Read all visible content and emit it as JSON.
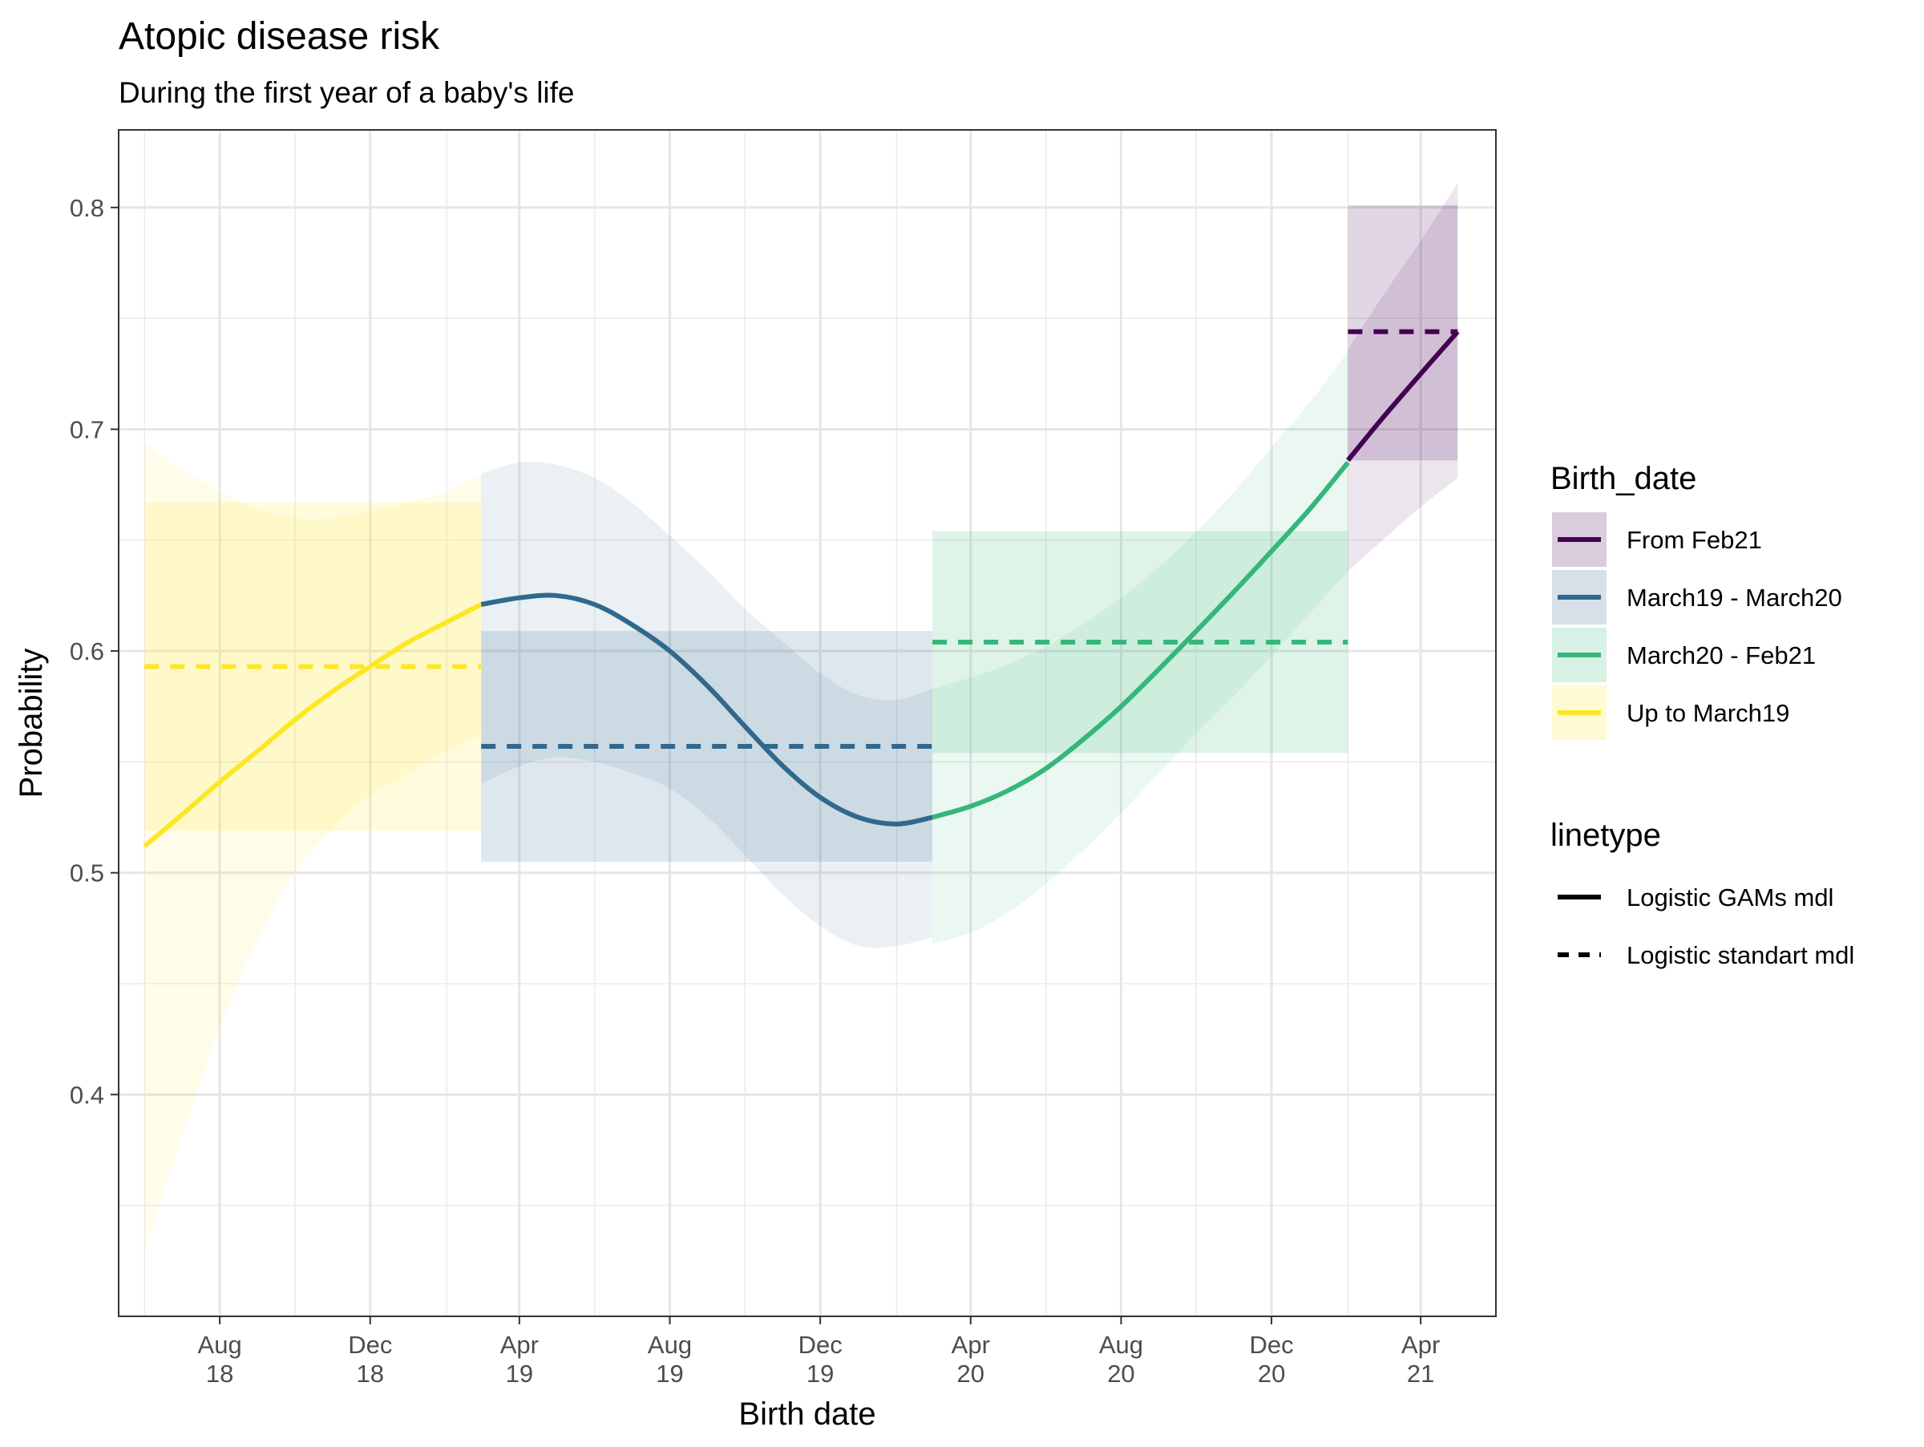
{
  "chart_data": {
    "type": "line",
    "title": "Atopic disease risk",
    "subtitle": "During the first year of a baby's life",
    "xlabel": "Birth date",
    "ylabel": "Probability",
    "xlim": [
      "2018-05-11",
      "2021-06-01"
    ],
    "ylim": [
      0.3,
      0.835
    ],
    "x_ticks": [
      {
        "date": "2018-08-01",
        "label1": "Aug",
        "label2": "18"
      },
      {
        "date": "2018-12-01",
        "label1": "Dec",
        "label2": "18"
      },
      {
        "date": "2019-04-01",
        "label1": "Apr",
        "label2": "19"
      },
      {
        "date": "2019-08-01",
        "label1": "Aug",
        "label2": "19"
      },
      {
        "date": "2019-12-01",
        "label1": "Dec",
        "label2": "19"
      },
      {
        "date": "2020-04-01",
        "label1": "Apr",
        "label2": "20"
      },
      {
        "date": "2020-08-01",
        "label1": "Aug",
        "label2": "20"
      },
      {
        "date": "2020-12-01",
        "label1": "Dec",
        "label2": "20"
      },
      {
        "date": "2021-04-01",
        "label1": "Apr",
        "label2": "21"
      }
    ],
    "x_minor_ticks": [
      "2018-06-01",
      "2018-10-01",
      "2019-02-01",
      "2019-06-01",
      "2019-10-01",
      "2020-02-01",
      "2020-06-01",
      "2020-10-01",
      "2021-02-01",
      "2021-06-01"
    ],
    "y_ticks": [
      0.4,
      0.5,
      0.6,
      0.7,
      0.8
    ],
    "y_minor_ticks": [
      0.35,
      0.45,
      0.55,
      0.65,
      0.75
    ],
    "grid": true,
    "legend_position": "right",
    "legend": {
      "color_title": "Birth_date",
      "linetype_title": "linetype",
      "color_entries": [
        "From Feb21",
        "March19 - March20",
        "March20 - Feb21",
        "Up to March19"
      ],
      "linetype_entries": [
        {
          "label": "Logistic GAMs mdl",
          "style": "solid"
        },
        {
          "label": "Logistic standart mdl",
          "style": "dashed"
        }
      ]
    },
    "series": [
      {
        "name": "Up to March19",
        "color": "#FDE725",
        "gam": {
          "x": [
            "2018-06-01",
            "2018-07-01",
            "2018-08-01",
            "2018-09-01",
            "2018-10-01",
            "2018-11-01",
            "2018-12-01",
            "2019-01-01",
            "2019-02-01",
            "2019-03-01"
          ],
          "y": [
            0.512,
            0.526,
            0.541,
            0.555,
            0.569,
            0.582,
            0.593,
            0.604,
            0.613,
            0.621
          ],
          "lower": [
            0.33,
            0.38,
            0.43,
            0.47,
            0.5,
            0.52,
            0.535,
            0.545,
            0.555,
            0.562
          ],
          "upper": [
            0.694,
            0.682,
            0.672,
            0.664,
            0.66,
            0.66,
            0.663,
            0.667,
            0.672,
            0.68
          ]
        },
        "standard": {
          "x": [
            "2018-06-01",
            "2019-03-01"
          ],
          "y": 0.593,
          "lower": 0.519,
          "upper": 0.667
        }
      },
      {
        "name": "March19 - March20",
        "color": "#31688E",
        "gam": {
          "x": [
            "2019-03-01",
            "2019-04-01",
            "2019-05-01",
            "2019-06-01",
            "2019-07-01",
            "2019-08-01",
            "2019-09-01",
            "2019-10-01",
            "2019-11-01",
            "2019-12-01",
            "2020-01-01",
            "2020-02-01",
            "2020-03-01"
          ],
          "y": [
            0.621,
            0.624,
            0.625,
            0.621,
            0.612,
            0.6,
            0.584,
            0.566,
            0.548,
            0.534,
            0.525,
            0.522,
            0.525
          ],
          "lower": [
            0.54,
            0.548,
            0.552,
            0.55,
            0.545,
            0.538,
            0.525,
            0.508,
            0.49,
            0.476,
            0.467,
            0.467,
            0.471
          ],
          "upper": [
            0.68,
            0.685,
            0.684,
            0.678,
            0.667,
            0.652,
            0.636,
            0.619,
            0.604,
            0.59,
            0.58,
            0.578,
            0.583
          ]
        },
        "standard": {
          "x": [
            "2019-03-01",
            "2020-03-01"
          ],
          "y": 0.557,
          "lower": 0.505,
          "upper": 0.609
        }
      },
      {
        "name": "March20 - Feb21",
        "color": "#35B779",
        "gam": {
          "x": [
            "2020-03-01",
            "2020-04-01",
            "2020-05-01",
            "2020-06-01",
            "2020-07-01",
            "2020-08-01",
            "2020-09-01",
            "2020-10-01",
            "2020-11-01",
            "2020-12-01",
            "2021-01-01",
            "2021-02-01"
          ],
          "y": [
            0.525,
            0.53,
            0.537,
            0.547,
            0.56,
            0.575,
            0.592,
            0.609,
            0.627,
            0.645,
            0.664,
            0.685
          ],
          "lower": [
            0.468,
            0.473,
            0.482,
            0.495,
            0.51,
            0.527,
            0.545,
            0.563,
            0.58,
            0.598,
            0.617,
            0.636
          ],
          "upper": [
            0.583,
            0.588,
            0.594,
            0.602,
            0.612,
            0.624,
            0.638,
            0.654,
            0.672,
            0.692,
            0.712,
            0.735
          ]
        },
        "standard": {
          "x": [
            "2020-03-01",
            "2021-02-01"
          ],
          "y": 0.604,
          "lower": 0.554,
          "upper": 0.654
        }
      },
      {
        "name": "From Feb21",
        "color": "#440154",
        "gam": {
          "x": [
            "2021-02-01",
            "2021-03-01",
            "2021-04-01",
            "2021-05-01"
          ],
          "y": [
            0.686,
            0.705,
            0.725,
            0.744
          ],
          "lower": [
            0.636,
            0.65,
            0.665,
            0.678
          ],
          "upper": [
            0.736,
            0.76,
            0.785,
            0.811
          ]
        },
        "standard": {
          "x": [
            "2021-02-01",
            "2021-05-01"
          ],
          "y": 0.744,
          "lower": 0.686,
          "upper": 0.801
        }
      }
    ]
  }
}
